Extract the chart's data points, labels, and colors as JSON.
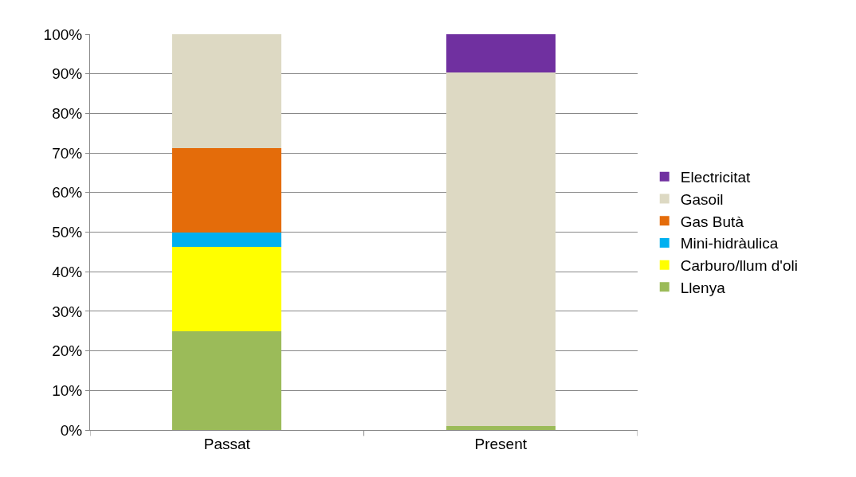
{
  "chart_data": {
    "type": "bar",
    "stacked": true,
    "categories": [
      "Passat",
      "Present"
    ],
    "series": [
      {
        "name": "Llenya",
        "color": "#9bbb59",
        "values": [
          25,
          1
        ]
      },
      {
        "name": "Carburo/llum d'oli",
        "color": "#ffff00",
        "values": [
          21.3,
          null
        ]
      },
      {
        "name": "Mini-hidràulica",
        "color": "#00b0f0",
        "values": [
          3.7,
          null
        ]
      },
      {
        "name": "Gas Butà",
        "color": "#e46c0a",
        "values": [
          21.2,
          null
        ]
      },
      {
        "name": "Gasoil",
        "color": "#ddd9c3",
        "values": [
          28.8,
          89.3
        ]
      },
      {
        "name": "Electricitat",
        "color": "#7030a0",
        "values": [
          null,
          9.7
        ]
      }
    ],
    "ylim": [
      0,
      100
    ],
    "yticks": [
      {
        "value": 0,
        "label": "0%"
      },
      {
        "value": 10,
        "label": "10%"
      },
      {
        "value": 20,
        "label": "20%"
      },
      {
        "value": 30,
        "label": "30%"
      },
      {
        "value": 40,
        "label": "40%"
      },
      {
        "value": 50,
        "label": "50%"
      },
      {
        "value": 60,
        "label": "60%"
      },
      {
        "value": 70,
        "label": "70%"
      },
      {
        "value": 80,
        "label": "80%"
      },
      {
        "value": 90,
        "label": "90%"
      },
      {
        "value": 100,
        "label": "100%"
      }
    ],
    "grid": "y",
    "legend": "right"
  }
}
